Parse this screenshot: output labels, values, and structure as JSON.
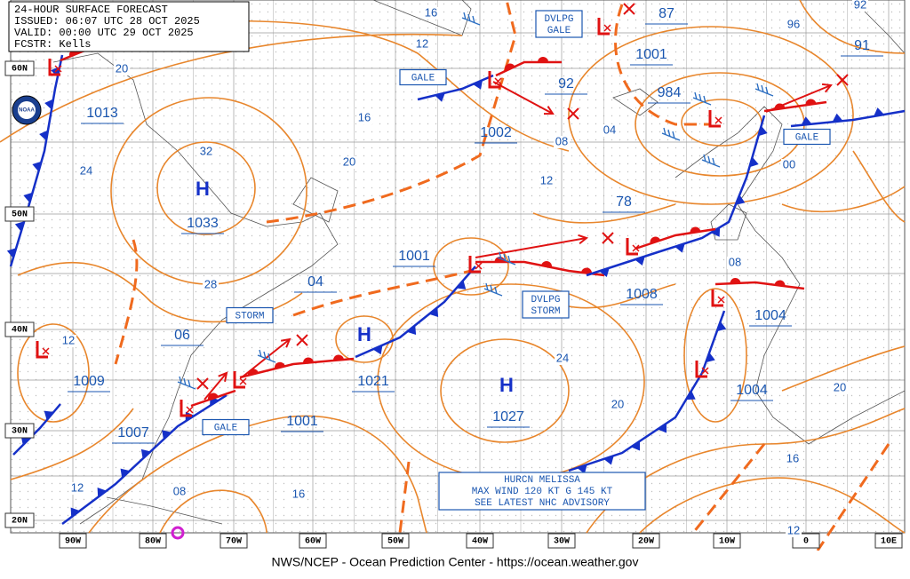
{
  "header": {
    "lines": [
      "24-HOUR SURFACE FORECAST",
      "ISSUED: 06:07 UTC 28 OCT 2025",
      "VALID:  00:00 UTC 29 OCT 2025",
      "FCSTR:  Kells"
    ]
  },
  "logo": "NOAA",
  "latitudes": [
    "60N",
    "50N",
    "40N",
    "30N",
    "20N"
  ],
  "longitudes": [
    "90W",
    "80W",
    "70W",
    "60W",
    "50W",
    "40W",
    "30W",
    "20W",
    "10W",
    "0",
    "10E"
  ],
  "highs": [
    {
      "symbol": "H",
      "pressure": "1033"
    },
    {
      "symbol": "H",
      "pressure": "1021"
    },
    {
      "symbol": "H",
      "pressure": "1027"
    }
  ],
  "center_pressures": [
    "1013",
    "1009",
    "1007",
    "1001",
    "1001",
    "1002",
    "1001",
    "984",
    "92",
    "78",
    "1008",
    "1004",
    "1004",
    "04",
    "06",
    "87",
    "91"
  ],
  "isobar_labels": [
    "16",
    "12",
    "20",
    "24",
    "16",
    "32",
    "20",
    "28",
    "12",
    "08",
    "04",
    "96",
    "92",
    "00",
    "08",
    "24",
    "20",
    "20",
    "16",
    "12",
    "12",
    "08",
    "16",
    "12"
  ],
  "boxes": [
    {
      "lines": [
        "GALE"
      ]
    },
    {
      "lines": [
        "DVLPG",
        "GALE"
      ]
    },
    {
      "lines": [
        "GALE"
      ]
    },
    {
      "lines": [
        "STORM"
      ]
    },
    {
      "lines": [
        "DVLPG",
        "STORM"
      ]
    },
    {
      "lines": [
        "GALE"
      ]
    }
  ],
  "advisory": [
    "HURCN MELISSA",
    "MAX WIND 120 KT G 145 KT",
    "SEE LATEST NHC ADVISORY"
  ],
  "footer": "NWS/NCEP - Ocean Prediction Center - https://ocean.weather.gov"
}
